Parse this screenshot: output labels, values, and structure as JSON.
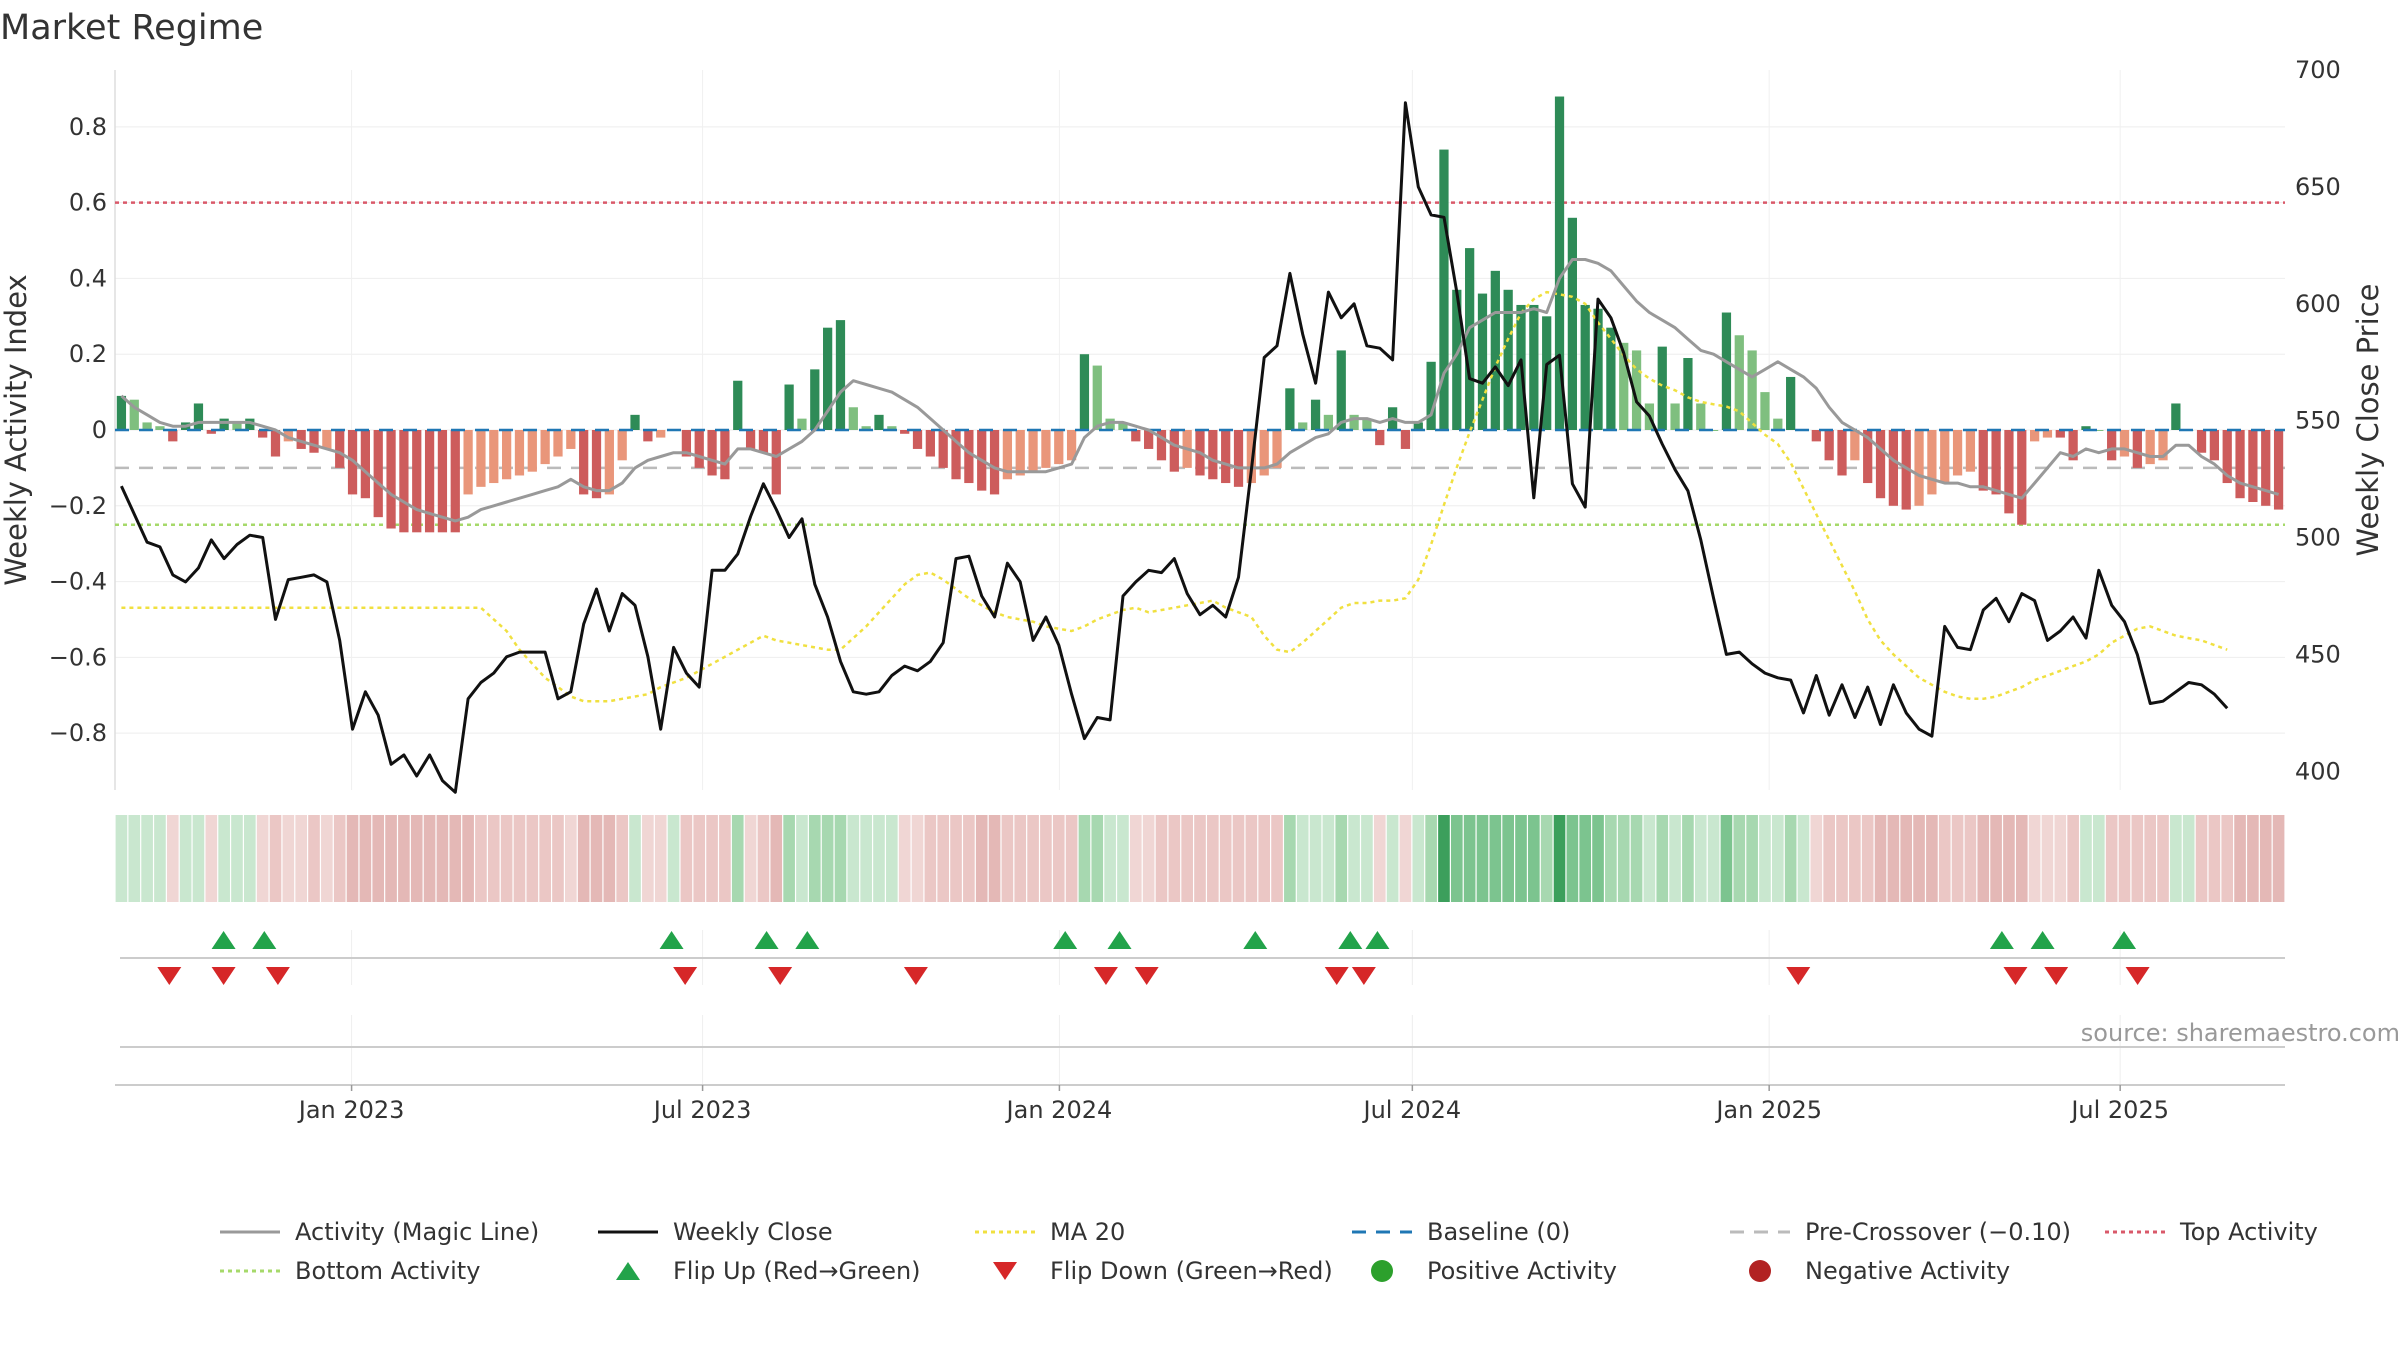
{
  "page": {
    "title": "Market Regime",
    "source": "source: sharemaestro.com"
  },
  "colors": {
    "positive_strong": "#2e8b57",
    "positive_light": "#7fbf7f",
    "negative_strong": "#cd5c5c",
    "negative_light": "#e9967a",
    "magic_line": "#999999",
    "weekly_close": "#111111",
    "ma20": "#f0e040",
    "baseline": "#1f77b4",
    "pre_crossover": "#bbbbbb",
    "top_activity": "#d9596a",
    "bottom_activity": "#a6d96a",
    "flip_up": "#22a34a",
    "flip_down": "#d62728",
    "positive_dot": "#2ca02c",
    "negative_dot": "#b22222"
  },
  "chart_data": {
    "type": "bar",
    "title": "Market Regime",
    "ylabel": "Weekly Activity Index",
    "y2label": "Weekly Close Price",
    "ylim": [
      -0.95,
      0.95
    ],
    "y2lim": [
      392,
      700
    ],
    "yticks": [
      "0.8",
      "0.6",
      "0.4",
      "0.2",
      "0",
      "−0.2",
      "−0.4",
      "−0.6",
      "−0.8"
    ],
    "ytick_values": [
      0.8,
      0.6,
      0.4,
      0.2,
      0,
      -0.2,
      -0.4,
      -0.6,
      -0.8
    ],
    "y2ticks": [
      "700",
      "650",
      "600",
      "550",
      "500",
      "450",
      "400"
    ],
    "y2tick_values": [
      700,
      650,
      600,
      550,
      500,
      450,
      400
    ],
    "xticks": [
      "Jan 2023",
      "Jul 2023",
      "Jan 2024",
      "Jul 2024",
      "Jan 2025",
      "Jul 2025"
    ],
    "xtick_dates": [
      "2023-01-01",
      "2023-07-01",
      "2024-01-01",
      "2024-07-01",
      "2025-01-01",
      "2025-07-01"
    ],
    "first_week": "2022-09-01",
    "last_week": "2025-09-24",
    "top_activity": 0.6,
    "bottom_activity": -0.25,
    "pre_crossover": -0.1,
    "baseline": 0,
    "activity": [
      0.09,
      0.08,
      0.02,
      0.01,
      -0.03,
      0.02,
      0.07,
      -0.01,
      0.03,
      0.02,
      0.03,
      -0.02,
      -0.07,
      -0.03,
      -0.05,
      -0.06,
      -0.05,
      -0.1,
      -0.17,
      -0.18,
      -0.23,
      -0.26,
      -0.27,
      -0.27,
      -0.27,
      -0.27,
      -0.27,
      -0.17,
      -0.15,
      -0.14,
      -0.13,
      -0.12,
      -0.11,
      -0.09,
      -0.07,
      -0.05,
      -0.17,
      -0.18,
      -0.17,
      -0.08,
      0.04,
      -0.03,
      -0.02,
      0.0,
      -0.07,
      -0.1,
      -0.12,
      -0.13,
      0.13,
      -0.05,
      -0.06,
      -0.17,
      0.12,
      0.03,
      0.16,
      0.27,
      0.29,
      0.06,
      0.01,
      0.04,
      0.01,
      -0.01,
      -0.05,
      -0.07,
      -0.1,
      -0.13,
      -0.14,
      -0.16,
      -0.17,
      -0.13,
      -0.12,
      -0.11,
      -0.1,
      -0.09,
      -0.08,
      0.2,
      0.17,
      0.03,
      0.02,
      -0.03,
      -0.05,
      -0.08,
      -0.11,
      -0.1,
      -0.12,
      -0.13,
      -0.14,
      -0.15,
      -0.14,
      -0.12,
      -0.1,
      0.11,
      0.02,
      0.08,
      0.04,
      0.21,
      0.04,
      0.03,
      -0.04,
      0.06,
      -0.05,
      0.02,
      0.18,
      0.74,
      0.37,
      0.48,
      0.36,
      0.42,
      0.37,
      0.33,
      0.33,
      0.3,
      0.88,
      0.56,
      0.33,
      0.32,
      0.27,
      0.23,
      0.21,
      0.07,
      0.22,
      0.07,
      0.19,
      0.07,
      0.0,
      0.31,
      0.25,
      0.21,
      0.1,
      0.03,
      0.14,
      0.0,
      -0.03,
      -0.08,
      -0.12,
      -0.08,
      -0.14,
      -0.18,
      -0.2,
      -0.21,
      -0.2,
      -0.17,
      -0.14,
      -0.12,
      -0.11,
      -0.16,
      -0.17,
      -0.22,
      -0.25,
      -0.03,
      -0.02,
      -0.02,
      -0.08,
      0.01,
      0.0,
      -0.08,
      -0.07,
      -0.1,
      -0.09,
      -0.08,
      0.07,
      0.0,
      -0.06,
      -0.08,
      -0.14,
      -0.18,
      -0.19,
      -0.2,
      -0.21
    ],
    "magic_line": [
      0.09,
      0.06,
      0.04,
      0.02,
      0.01,
      0.01,
      0.02,
      0.02,
      0.02,
      0.02,
      0.02,
      0.01,
      0.0,
      -0.02,
      -0.03,
      -0.04,
      -0.05,
      -0.06,
      -0.08,
      -0.11,
      -0.14,
      -0.17,
      -0.19,
      -0.21,
      -0.22,
      -0.23,
      -0.24,
      -0.23,
      -0.21,
      -0.2,
      -0.19,
      -0.18,
      -0.17,
      -0.16,
      -0.15,
      -0.13,
      -0.15,
      -0.16,
      -0.16,
      -0.14,
      -0.1,
      -0.08,
      -0.07,
      -0.06,
      -0.06,
      -0.07,
      -0.08,
      -0.09,
      -0.05,
      -0.05,
      -0.06,
      -0.07,
      -0.05,
      -0.03,
      0.0,
      0.05,
      0.1,
      0.13,
      0.12,
      0.11,
      0.1,
      0.08,
      0.06,
      0.03,
      0.0,
      -0.03,
      -0.06,
      -0.08,
      -0.1,
      -0.11,
      -0.11,
      -0.11,
      -0.11,
      -0.1,
      -0.09,
      -0.02,
      0.01,
      0.02,
      0.02,
      0.01,
      0.0,
      -0.02,
      -0.04,
      -0.05,
      -0.06,
      -0.08,
      -0.09,
      -0.1,
      -0.1,
      -0.1,
      -0.09,
      -0.06,
      -0.04,
      -0.02,
      -0.01,
      0.02,
      0.03,
      0.03,
      0.02,
      0.03,
      0.02,
      0.02,
      0.04,
      0.15,
      0.2,
      0.27,
      0.29,
      0.31,
      0.31,
      0.31,
      0.32,
      0.31,
      0.4,
      0.45,
      0.45,
      0.44,
      0.42,
      0.38,
      0.34,
      0.31,
      0.29,
      0.27,
      0.24,
      0.21,
      0.2,
      0.18,
      0.16,
      0.14,
      0.16,
      0.18,
      0.16,
      0.14,
      0.11,
      0.06,
      0.02,
      0.0,
      -0.02,
      -0.05,
      -0.08,
      -0.1,
      -0.12,
      -0.13,
      -0.14,
      -0.14,
      -0.15,
      -0.15,
      -0.16,
      -0.17,
      -0.18,
      -0.14,
      -0.1,
      -0.06,
      -0.07,
      -0.05,
      -0.06,
      -0.05,
      -0.05,
      -0.06,
      -0.07,
      -0.07,
      -0.04,
      -0.04,
      -0.07,
      -0.09,
      -0.12,
      -0.14,
      -0.15,
      -0.16,
      -0.17
    ],
    "weekly_close": [
      522,
      510,
      498,
      496,
      484,
      481,
      487,
      499,
      491,
      497,
      501,
      500,
      465,
      482,
      483,
      484,
      481,
      456,
      418,
      434,
      424,
      403,
      407,
      398,
      407,
      396,
      391,
      431,
      438,
      442,
      449,
      451,
      451,
      451,
      431,
      434,
      463,
      478,
      460,
      476,
      471,
      449,
      418,
      453,
      442,
      436,
      486,
      486,
      493,
      509,
      523,
      512,
      500,
      508,
      480,
      466,
      447,
      434,
      433,
      434,
      441,
      445,
      443,
      447,
      455,
      491,
      492,
      475,
      466,
      489,
      481,
      456,
      466,
      454,
      433,
      414,
      423,
      422,
      475,
      481,
      486,
      485,
      491,
      476,
      467,
      471,
      466,
      483,
      529,
      577,
      582,
      613,
      587,
      566,
      605,
      594,
      600,
      582,
      581,
      576,
      686,
      650,
      638,
      637,
      605,
      568,
      566,
      573,
      565,
      576,
      517,
      574,
      578,
      523,
      513,
      602,
      594,
      579,
      558,
      552,
      540,
      529,
      520,
      499,
      474,
      450,
      451,
      446,
      442,
      440,
      439,
      425,
      441,
      424,
      437,
      423,
      436,
      420,
      437,
      425,
      418,
      415,
      462,
      453,
      452,
      469,
      474,
      464,
      476,
      473,
      456,
      460,
      466,
      457,
      486,
      471,
      464,
      450,
      429,
      430,
      434,
      438,
      437,
      433,
      427
    ],
    "ma20": [
      470,
      470,
      470,
      470,
      470,
      470,
      470,
      470,
      470,
      470,
      470,
      470,
      470,
      470,
      470,
      470,
      470,
      470,
      470,
      470,
      470,
      470,
      470,
      470,
      470,
      470,
      470,
      470,
      470,
      465,
      460,
      452,
      446,
      440,
      436,
      432,
      430,
      430,
      430,
      431,
      432,
      433,
      436,
      438,
      440,
      443,
      446,
      449,
      452,
      455,
      458,
      456,
      455,
      454,
      453,
      452,
      452,
      457,
      462,
      468,
      474,
      480,
      484,
      485,
      482,
      478,
      474,
      471,
      468,
      466,
      465,
      464,
      462,
      461,
      460,
      462,
      465,
      467,
      469,
      470,
      468,
      469,
      470,
      471,
      472,
      473,
      470,
      468,
      466,
      458,
      452,
      451,
      455,
      460,
      465,
      470,
      472,
      472,
      473,
      473,
      474,
      482,
      497,
      514,
      530,
      545,
      559,
      573,
      585,
      596,
      602,
      605,
      604,
      603,
      600,
      592,
      585,
      578,
      572,
      568,
      565,
      563,
      560,
      558,
      557,
      556,
      554,
      549,
      544,
      540,
      532,
      521,
      510,
      499,
      488,
      477,
      465,
      456,
      450,
      445,
      440,
      437,
      434,
      432,
      431,
      431,
      432,
      434,
      436,
      439,
      441,
      443,
      445,
      447,
      450,
      455,
      458,
      461,
      462,
      460,
      458,
      457,
      456,
      454,
      452
    ],
    "flip_up_dates": [
      "2022-10-27",
      "2022-11-17",
      "2023-06-15",
      "2023-08-03",
      "2023-08-24",
      "2024-01-04",
      "2024-02-01",
      "2024-04-11",
      "2024-05-30",
      "2024-06-13",
      "2025-05-01",
      "2025-05-22",
      "2025-07-03"
    ],
    "flip_down_dates": [
      "2022-09-29",
      "2022-10-27",
      "2022-11-24",
      "2023-06-22",
      "2023-08-10",
      "2023-10-19",
      "2024-01-25",
      "2024-02-15",
      "2024-05-23",
      "2024-06-06",
      "2025-01-16",
      "2025-05-08",
      "2025-05-29",
      "2025-07-10"
    ],
    "legend": [
      {
        "label": "Activity (Magic Line)",
        "style": "line",
        "color": "#999999"
      },
      {
        "label": "Weekly Close",
        "style": "line",
        "color": "#111111"
      },
      {
        "label": "MA 20",
        "style": "dotted",
        "color": "#f0e040"
      },
      {
        "label": "Baseline (0)",
        "style": "dashed",
        "color": "#1f77b4"
      },
      {
        "label": "Pre-Crossover (−0.10)",
        "style": "dashed",
        "color": "#bbbbbb"
      },
      {
        "label": "Top Activity",
        "style": "dotted",
        "color": "#d9596a"
      },
      {
        "label": "Bottom Activity",
        "style": "dotted",
        "color": "#a6d96a"
      },
      {
        "label": "Flip Up (Red→Green)",
        "style": "tri-up",
        "color": "#22a34a"
      },
      {
        "label": "Flip Down (Green→Red)",
        "style": "tri-down",
        "color": "#d62728"
      },
      {
        "label": "Positive Activity",
        "style": "dot",
        "color": "#2ca02c"
      },
      {
        "label": "Negative Activity",
        "style": "dot",
        "color": "#b22222"
      }
    ]
  }
}
